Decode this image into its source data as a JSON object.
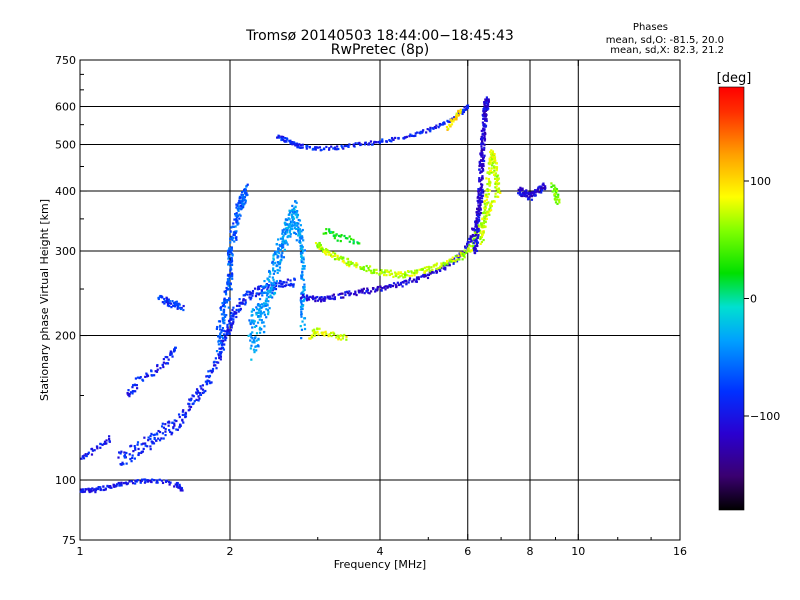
{
  "header": {
    "title_line1": "Tromsø 20140503 18:44:00−18:45:43",
    "title_line2": "RwPretec (8p)",
    "stats_title": "Phases",
    "stats_o": "mean, sd,O: -81.5, 20.0",
    "stats_x": "mean, sd,X:  82.3, 21.2"
  },
  "colorbar": {
    "unit": "[deg]",
    "ticks": [
      {
        "value": 100,
        "label": "100"
      },
      {
        "value": 0,
        "label": "0"
      },
      {
        "value": -100,
        "label": "−100"
      }
    ],
    "range": [
      -180,
      180
    ]
  },
  "chart_data": {
    "type": "scatter",
    "title": "Tromsø 20140503 18:44:00−18:45:43",
    "subtitle": "RwPretec (8p)",
    "xlabel": "Frequency [MHz]",
    "ylabel": "Stationary phase Virtual Height [km]",
    "xscale": "log",
    "yscale": "log",
    "xlim": [
      1,
      16
    ],
    "ylim": [
      75,
      750
    ],
    "xticks": [
      1,
      2,
      4,
      6,
      8,
      10,
      16
    ],
    "xtick_labels": [
      "1",
      "2",
      "4",
      "6",
      "8",
      "10",
      "16"
    ],
    "yticks": [
      75,
      100,
      200,
      300,
      400,
      500,
      600,
      750
    ],
    "ytick_labels": [
      "75",
      "100",
      "200",
      "300",
      "400",
      "500",
      "600",
      "750"
    ],
    "xgrid": [
      2,
      4,
      6,
      8,
      10
    ],
    "ygrid": [
      100,
      200,
      300,
      400,
      500,
      600
    ],
    "color_variable": "phase [deg]",
    "traces": [
      {
        "points": [
          [
            1.0,
            95
          ],
          [
            1.05,
            95
          ],
          [
            1.1,
            96
          ],
          [
            1.15,
            97
          ],
          [
            1.2,
            98
          ],
          [
            1.3,
            99
          ],
          [
            1.4,
            100
          ],
          [
            1.55,
            98
          ],
          [
            1.6,
            96
          ]
        ],
        "phase": -95,
        "jitter": 2,
        "repeat": 3
      },
      {
        "points": [
          [
            1.0,
            112
          ],
          [
            1.05,
            114
          ],
          [
            1.1,
            118
          ],
          [
            1.15,
            122
          ]
        ],
        "phase": -95,
        "jitter": 3,
        "repeat": 2
      },
      {
        "points": [
          [
            1.2,
            112
          ],
          [
            1.3,
            115
          ],
          [
            1.4,
            120
          ],
          [
            1.5,
            128
          ],
          [
            1.6,
            135
          ],
          [
            1.7,
            148
          ],
          [
            1.8,
            160
          ],
          [
            1.9,
            180
          ],
          [
            1.95,
            200
          ],
          [
            2.0,
            210
          ],
          [
            2.05,
            225
          ],
          [
            2.15,
            240
          ],
          [
            2.3,
            250
          ],
          [
            2.5,
            255
          ],
          [
            2.7,
            258
          ]
        ],
        "phase": -88,
        "jitter": 10,
        "repeat": 5
      },
      {
        "points": [
          [
            1.25,
            150
          ],
          [
            1.3,
            160
          ],
          [
            1.4,
            168
          ],
          [
            1.5,
            178
          ],
          [
            1.55,
            190
          ]
        ],
        "phase": -92,
        "jitter": 6,
        "repeat": 3
      },
      {
        "points": [
          [
            1.45,
            240
          ],
          [
            1.5,
            235
          ],
          [
            1.55,
            232
          ],
          [
            1.6,
            228
          ]
        ],
        "phase": -80,
        "jitter": 8,
        "repeat": 3
      },
      {
        "points": [
          [
            1.9,
            200
          ],
          [
            1.95,
            230
          ],
          [
            2.0,
            260
          ],
          [
            2.0,
            300
          ],
          [
            2.05,
            340
          ],
          [
            2.1,
            380
          ],
          [
            2.15,
            400
          ]
        ],
        "phase": -65,
        "jitter": 30,
        "repeat": 8
      },
      {
        "points": [
          [
            2.2,
            200
          ],
          [
            2.3,
            220
          ],
          [
            2.4,
            250
          ],
          [
            2.5,
            290
          ],
          [
            2.6,
            330
          ],
          [
            2.7,
            360
          ],
          [
            2.8,
            300
          ],
          [
            2.8,
            220
          ]
        ],
        "phase": -40,
        "jitter": 45,
        "repeat": 12
      },
      {
        "points": [
          [
            2.5,
            520
          ],
          [
            2.6,
            510
          ],
          [
            2.7,
            500
          ],
          [
            2.8,
            495
          ],
          [
            3.0,
            490
          ],
          [
            3.3,
            492
          ],
          [
            3.6,
            500
          ],
          [
            3.9,
            505
          ],
          [
            4.2,
            512
          ],
          [
            4.6,
            522
          ],
          [
            5.0,
            535
          ],
          [
            5.4,
            555
          ],
          [
            5.8,
            580
          ],
          [
            6.0,
            600
          ]
        ],
        "phase": -88,
        "jitter": 8,
        "repeat": 3
      },
      {
        "points": [
          [
            2.8,
            240
          ],
          [
            3.0,
            238
          ],
          [
            3.2,
            240
          ],
          [
            3.5,
            245
          ],
          [
            3.8,
            248
          ],
          [
            4.1,
            252
          ],
          [
            4.4,
            256
          ],
          [
            4.8,
            263
          ],
          [
            5.2,
            272
          ],
          [
            5.6,
            285
          ],
          [
            5.9,
            300
          ],
          [
            6.1,
            320
          ],
          [
            6.3,
            350
          ],
          [
            6.4,
            400
          ]
        ],
        "phase": -110,
        "jitter": 6,
        "repeat": 4
      },
      {
        "points": [
          [
            3.0,
            310
          ],
          [
            3.1,
            300
          ],
          [
            3.3,
            290
          ],
          [
            3.5,
            282
          ],
          [
            3.8,
            275
          ],
          [
            4.1,
            270
          ],
          [
            4.4,
            268
          ],
          [
            4.7,
            270
          ],
          [
            5.0,
            275
          ],
          [
            5.4,
            282
          ],
          [
            5.8,
            292
          ],
          [
            6.1,
            305
          ],
          [
            6.3,
            330
          ],
          [
            6.6,
            360
          ],
          [
            6.9,
            400
          ]
        ],
        "phase": 70,
        "jitter": 8,
        "repeat": 4
      },
      {
        "points": [
          [
            3.1,
            330
          ],
          [
            3.3,
            320
          ],
          [
            3.6,
            315
          ]
        ],
        "phase": 20,
        "jitter": 10,
        "repeat": 3
      },
      {
        "points": [
          [
            2.9,
            200
          ],
          [
            3.0,
            205
          ],
          [
            3.2,
            200
          ],
          [
            3.4,
            198
          ]
        ],
        "phase": 80,
        "jitter": 6,
        "repeat": 3
      },
      {
        "points": [
          [
            6.2,
            300
          ],
          [
            6.3,
            350
          ],
          [
            6.35,
            400
          ],
          [
            6.4,
            460
          ],
          [
            6.45,
            520
          ],
          [
            6.5,
            580
          ],
          [
            6.55,
            620
          ]
        ],
        "phase": -110,
        "jitter": 20,
        "repeat": 8
      },
      {
        "points": [
          [
            6.4,
            320
          ],
          [
            6.5,
            360
          ],
          [
            6.6,
            420
          ],
          [
            6.7,
            480
          ],
          [
            6.8,
            450
          ],
          [
            6.9,
            400
          ]
        ],
        "phase": 75,
        "jitter": 20,
        "repeat": 6
      },
      {
        "points": [
          [
            7.6,
            400
          ],
          [
            7.8,
            395
          ],
          [
            8.0,
            390
          ],
          [
            8.3,
            400
          ],
          [
            8.6,
            410
          ]
        ],
        "phase": -110,
        "jitter": 14,
        "repeat": 4
      },
      {
        "points": [
          [
            8.9,
            410
          ],
          [
            9.0,
            395
          ],
          [
            9.1,
            380
          ]
        ],
        "phase": 50,
        "jitter": 12,
        "repeat": 3
      },
      {
        "points": [
          [
            5.5,
            540
          ],
          [
            5.6,
            560
          ],
          [
            5.7,
            575
          ],
          [
            5.8,
            590
          ]
        ],
        "phase": 95,
        "jitter": 10,
        "repeat": 2
      }
    ]
  }
}
